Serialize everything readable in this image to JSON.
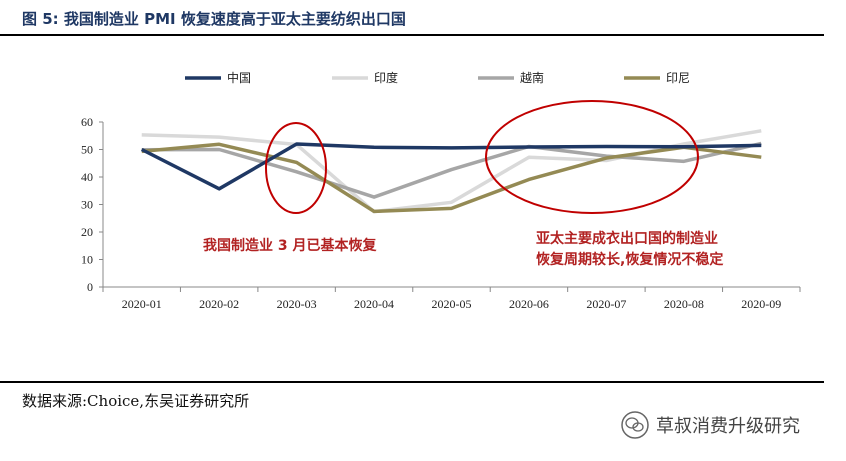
{
  "figure": {
    "title": "图 5:  我国制造业 PMI 恢复速度高于亚太主要纺织出口国",
    "source": "数据来源:Choice,东吴证券研究所",
    "watermark": "草叔消费升级研究"
  },
  "chart_data": {
    "type": "line",
    "title": "",
    "xlabel": "",
    "ylabel": "",
    "categories": [
      "2020-01",
      "2020-02",
      "2020-03",
      "2020-04",
      "2020-05",
      "2020-06",
      "2020-07",
      "2020-08",
      "2020-09"
    ],
    "ylim": [
      0,
      60
    ],
    "yticks": [
      0,
      10,
      20,
      30,
      40,
      50,
      60
    ],
    "grid": false,
    "legend_position": "top",
    "series": [
      {
        "name": "中国",
        "color": "#1f3864",
        "values": [
          50.0,
          35.7,
          52.0,
          50.8,
          50.6,
          50.9,
          51.1,
          51.0,
          51.5
        ]
      },
      {
        "name": "印度",
        "color": "#d9d9d9",
        "values": [
          55.3,
          54.5,
          51.8,
          27.4,
          30.8,
          47.2,
          46.0,
          52.0,
          56.8
        ]
      },
      {
        "name": "越南",
        "color": "#a6a6a6",
        "values": [
          49.9,
          50.0,
          41.9,
          32.7,
          42.7,
          51.1,
          47.6,
          45.7,
          52.2
        ]
      },
      {
        "name": "印尼",
        "color": "#948a54",
        "values": [
          49.3,
          51.9,
          45.3,
          27.5,
          28.6,
          39.1,
          46.9,
          50.8,
          47.2
        ]
      }
    ],
    "annotations": [
      {
        "text": "我国制造业 3 月已基本恢复"
      },
      {
        "text": "亚太主要成衣出口国的制造业"
      },
      {
        "text": "恢复周期较长,恢复情况不稳定"
      }
    ],
    "annotation_color": "#c00000"
  }
}
